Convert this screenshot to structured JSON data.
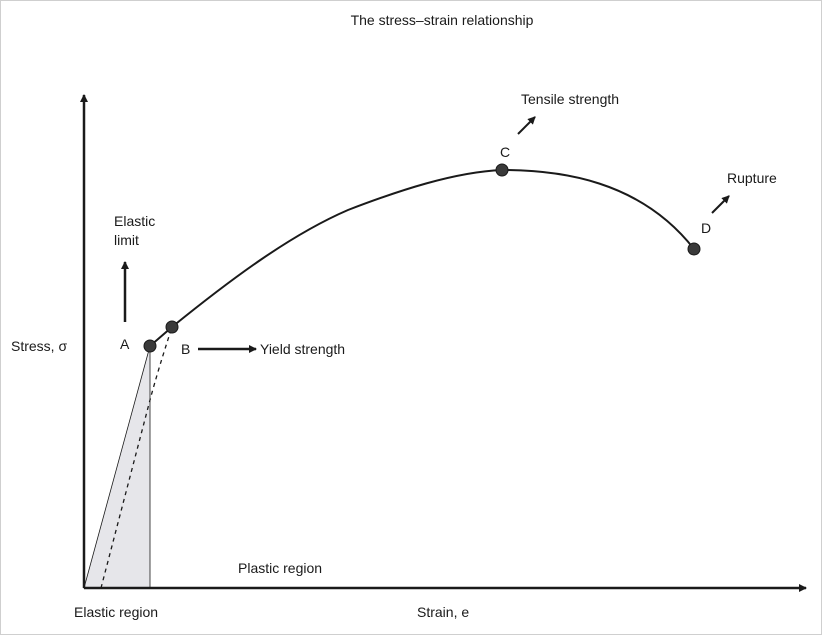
{
  "title": "The stress–strain relationship",
  "axes": {
    "y_label": "Stress, σ",
    "x_label": "Strain, e"
  },
  "regions": {
    "elastic": "Elastic region",
    "plastic": "Plastic region"
  },
  "points": {
    "A": "A",
    "B": "B",
    "C": "C",
    "D": "D"
  },
  "annotations": {
    "elastic_limit_line1": "Elastic",
    "elastic_limit_line2": "limit",
    "yield_strength": "Yield strength",
    "tensile_strength": "Tensile strength",
    "rupture": "Rupture"
  },
  "colors": {
    "line": "#1a1a1a",
    "point_fill": "#3a3a3a",
    "elastic_shade": "#e6e6ea",
    "frame": "#cfcfcf"
  }
}
